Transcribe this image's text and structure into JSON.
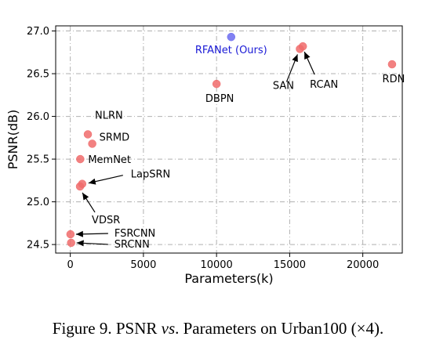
{
  "chart_data": {
    "type": "scatter",
    "xlabel": "Parameters(k)",
    "ylabel": "PSNR(dB)",
    "xlim": [
      -1000,
      22700
    ],
    "ylim": [
      24.4,
      27.06
    ],
    "xticks": [
      0,
      5000,
      10000,
      15000,
      20000
    ],
    "yticks": [
      24.5,
      25.0,
      25.5,
      26.0,
      26.5,
      27.0
    ],
    "xtick_labels": [
      "0",
      "5000",
      "10000",
      "15000",
      "20000"
    ],
    "ytick_labels": [
      "24.5",
      "25.0",
      "25.5",
      "26.0",
      "26.5",
      "27.0"
    ],
    "grid": true,
    "points": [
      {
        "name": "RFANet (Ours)",
        "x": 11000,
        "y": 26.93,
        "color": "#6b6bf0",
        "label_color": "#1a1ad6"
      },
      {
        "name": "SAN",
        "x": 15700,
        "y": 26.79,
        "color": "#f06b6b"
      },
      {
        "name": "RCAN",
        "x": 15900,
        "y": 26.82,
        "color": "#f06b6b"
      },
      {
        "name": "RDN",
        "x": 22000,
        "y": 26.61,
        "color": "#f06b6b"
      },
      {
        "name": "DBPN",
        "x": 10000,
        "y": 26.38,
        "color": "#f06b6b"
      },
      {
        "name": "NLRN",
        "x": 1200,
        "y": 25.79,
        "color": "#f06b6b"
      },
      {
        "name": "SRMD",
        "x": 1500,
        "y": 25.68,
        "color": "#f06b6b"
      },
      {
        "name": "MemNet",
        "x": 680,
        "y": 25.5,
        "color": "#f06b6b"
      },
      {
        "name": "LapSRN",
        "x": 813,
        "y": 25.21,
        "color": "#f06b6b"
      },
      {
        "name": "VDSR",
        "x": 665,
        "y": 25.18,
        "color": "#f06b6b"
      },
      {
        "name": "FSRCNN",
        "x": 12,
        "y": 24.62,
        "color": "#f06b6b"
      },
      {
        "name": "SRCNN",
        "x": 57,
        "y": 24.52,
        "color": "#f06b6b"
      }
    ]
  },
  "caption": {
    "figure": "Figure 9.",
    "pre": " PSNR ",
    "vs": "vs",
    "post": ". Parameters on Urban100 (×4)."
  }
}
